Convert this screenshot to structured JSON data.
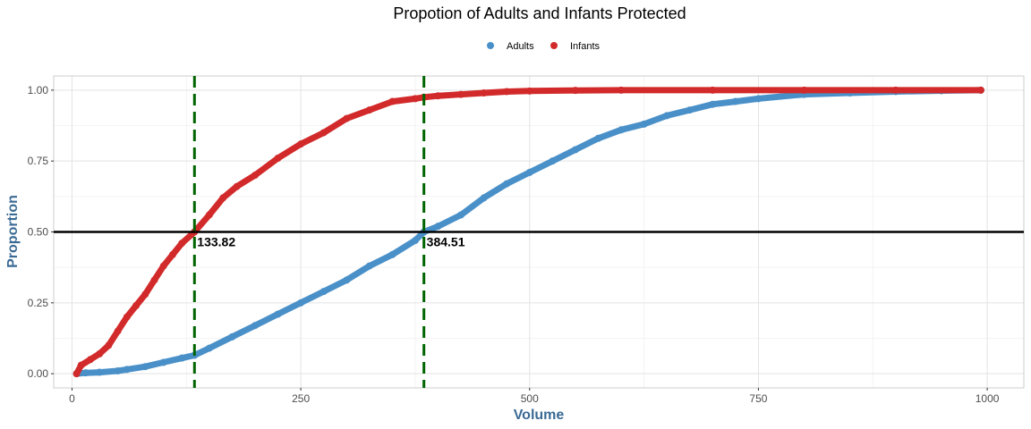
{
  "chart_data": {
    "type": "scatter",
    "title": "Propotion of Adults and Infants Protected",
    "xlabel": "Volume",
    "ylabel": "Proportion",
    "xlim": [
      -20,
      1040
    ],
    "ylim": [
      -0.05,
      1.05
    ],
    "x_ticks": [
      0,
      250,
      500,
      750,
      1000
    ],
    "x_tick_labels": [
      "0",
      "250",
      "500",
      "750",
      "1000"
    ],
    "y_ticks": [
      0,
      0.25,
      0.5,
      0.75,
      1.0
    ],
    "y_tick_labels": [
      "0.00",
      "0.25",
      "0.50",
      "0.75",
      "1.00"
    ],
    "grid": true,
    "legend": {
      "position": "top",
      "entries": [
        "Adults",
        "Infants"
      ]
    },
    "colors": {
      "Adults": "#4a90c8",
      "Infants": "#d22a2a",
      "vline": "#006400",
      "hline": "#000000"
    },
    "series": [
      {
        "name": "Adults",
        "points": [
          [
            5,
            0
          ],
          [
            15,
            0.003
          ],
          [
            30,
            0.005
          ],
          [
            50,
            0.01
          ],
          [
            60,
            0.015
          ],
          [
            80,
            0.025
          ],
          [
            100,
            0.04
          ],
          [
            120,
            0.055
          ],
          [
            133.82,
            0.065
          ],
          [
            150,
            0.09
          ],
          [
            175,
            0.13
          ],
          [
            200,
            0.17
          ],
          [
            225,
            0.21
          ],
          [
            250,
            0.25
          ],
          [
            275,
            0.29
          ],
          [
            300,
            0.33
          ],
          [
            325,
            0.38
          ],
          [
            350,
            0.42
          ],
          [
            375,
            0.47
          ],
          [
            384.51,
            0.5
          ],
          [
            400,
            0.52
          ],
          [
            425,
            0.56
          ],
          [
            450,
            0.62
          ],
          [
            475,
            0.67
          ],
          [
            500,
            0.71
          ],
          [
            525,
            0.75
          ],
          [
            550,
            0.79
          ],
          [
            575,
            0.83
          ],
          [
            600,
            0.86
          ],
          [
            625,
            0.88
          ],
          [
            650,
            0.91
          ],
          [
            675,
            0.93
          ],
          [
            700,
            0.95
          ],
          [
            725,
            0.96
          ],
          [
            750,
            0.97
          ],
          [
            800,
            0.985
          ],
          [
            850,
            0.99
          ],
          [
            900,
            0.995
          ],
          [
            950,
            0.998
          ],
          [
            993,
            1.0
          ]
        ]
      },
      {
        "name": "Infants",
        "points": [
          [
            5,
            0
          ],
          [
            10,
            0.03
          ],
          [
            20,
            0.05
          ],
          [
            30,
            0.07
          ],
          [
            40,
            0.1
          ],
          [
            50,
            0.15
          ],
          [
            60,
            0.2
          ],
          [
            70,
            0.24
          ],
          [
            80,
            0.28
          ],
          [
            90,
            0.33
          ],
          [
            100,
            0.38
          ],
          [
            110,
            0.42
          ],
          [
            120,
            0.46
          ],
          [
            133.82,
            0.5
          ],
          [
            150,
            0.56
          ],
          [
            165,
            0.62
          ],
          [
            180,
            0.66
          ],
          [
            200,
            0.7
          ],
          [
            225,
            0.76
          ],
          [
            250,
            0.81
          ],
          [
            275,
            0.85
          ],
          [
            300,
            0.9
          ],
          [
            325,
            0.93
          ],
          [
            350,
            0.96
          ],
          [
            375,
            0.97
          ],
          [
            384.51,
            0.975
          ],
          [
            400,
            0.98
          ],
          [
            425,
            0.985
          ],
          [
            450,
            0.99
          ],
          [
            475,
            0.995
          ],
          [
            500,
            0.997
          ],
          [
            550,
            0.999
          ],
          [
            600,
            1.0
          ],
          [
            700,
            1.0
          ],
          [
            800,
            1.0
          ],
          [
            900,
            1.0
          ],
          [
            993,
            1.0
          ]
        ]
      }
    ],
    "hline": 0.5,
    "vlines": [
      133.82,
      384.51
    ],
    "annotations": [
      {
        "x": 133.82,
        "y": 0.5,
        "label": "133.82"
      },
      {
        "x": 384.51,
        "y": 0.5,
        "label": "384.51"
      }
    ]
  }
}
